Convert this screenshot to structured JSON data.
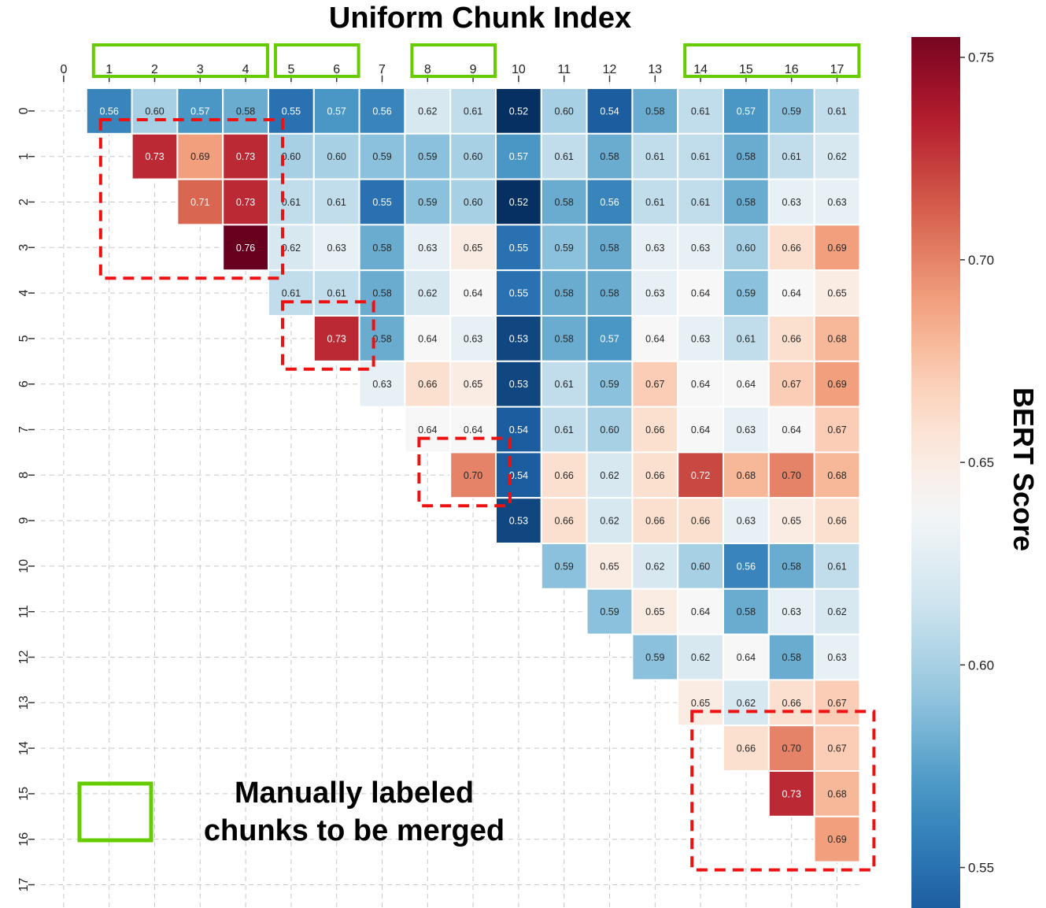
{
  "chart_data": {
    "type": "heatmap",
    "title": "Uniform Chunk Index",
    "xlabel": "Uniform Chunk Index",
    "ylabel": "",
    "x_ticks": [
      0,
      1,
      2,
      3,
      4,
      5,
      6,
      7,
      8,
      9,
      10,
      11,
      12,
      13,
      14,
      15,
      16,
      17
    ],
    "y_ticks": [
      0,
      1,
      2,
      3,
      4,
      5,
      6,
      7,
      8,
      9,
      10,
      11,
      12,
      13,
      14,
      15,
      16,
      17
    ],
    "colorbar": {
      "label": "BERT Score",
      "min": 0.54,
      "max": 0.755,
      "ticks": [
        0.55,
        0.6,
        0.65,
        0.7,
        0.75
      ],
      "tick_labels": [
        "0.55",
        "0.60",
        "0.65",
        "0.70",
        "0.75"
      ],
      "colormap": "RdBu_r"
    },
    "rows": [
      {
        "row": 0,
        "start_col": 1,
        "values": [
          0.56,
          0.6,
          0.57,
          0.58,
          0.55,
          0.57,
          0.56,
          0.62,
          0.61,
          0.52,
          0.6,
          0.54,
          0.58,
          0.61,
          0.57,
          0.59,
          0.61
        ]
      },
      {
        "row": 1,
        "start_col": 2,
        "values": [
          0.73,
          0.69,
          0.73,
          0.6,
          0.6,
          0.59,
          0.59,
          0.6,
          0.57,
          0.61,
          0.58,
          0.61,
          0.61,
          0.58,
          0.61,
          0.62
        ]
      },
      {
        "row": 2,
        "start_col": 3,
        "values": [
          0.71,
          0.73,
          0.61,
          0.61,
          0.55,
          0.59,
          0.6,
          0.52,
          0.58,
          0.56,
          0.61,
          0.61,
          0.58,
          0.63,
          0.63
        ]
      },
      {
        "row": 3,
        "start_col": 4,
        "values": [
          0.76,
          0.62,
          0.63,
          0.58,
          0.63,
          0.65,
          0.55,
          0.59,
          0.58,
          0.63,
          0.63,
          0.6,
          0.66,
          0.69
        ]
      },
      {
        "row": 4,
        "start_col": 5,
        "values": [
          0.61,
          0.61,
          0.58,
          0.62,
          0.64,
          0.55,
          0.58,
          0.58,
          0.63,
          0.64,
          0.59,
          0.64,
          0.65
        ]
      },
      {
        "row": 5,
        "start_col": 6,
        "values": [
          0.73,
          0.58,
          0.64,
          0.63,
          0.53,
          0.58,
          0.57,
          0.64,
          0.63,
          0.61,
          0.66,
          0.68
        ]
      },
      {
        "row": 6,
        "start_col": 7,
        "values": [
          0.63,
          0.66,
          0.65,
          0.53,
          0.61,
          0.59,
          0.67,
          0.64,
          0.64,
          0.67,
          0.69
        ]
      },
      {
        "row": 7,
        "start_col": 8,
        "values": [
          0.64,
          0.64,
          0.54,
          0.61,
          0.6,
          0.66,
          0.64,
          0.63,
          0.64,
          0.67
        ]
      },
      {
        "row": 8,
        "start_col": 9,
        "values": [
          0.7,
          0.54,
          0.66,
          0.62,
          0.66,
          0.72,
          0.68,
          0.7,
          0.68
        ]
      },
      {
        "row": 9,
        "start_col": 10,
        "values": [
          0.53,
          0.66,
          0.62,
          0.66,
          0.66,
          0.63,
          0.65,
          0.66
        ]
      },
      {
        "row": 10,
        "start_col": 11,
        "values": [
          0.59,
          0.65,
          0.62,
          0.6,
          0.56,
          0.58,
          0.61
        ]
      },
      {
        "row": 11,
        "start_col": 12,
        "values": [
          0.59,
          0.65,
          0.64,
          0.58,
          0.63,
          0.62
        ]
      },
      {
        "row": 12,
        "start_col": 13,
        "values": [
          0.59,
          0.62,
          0.64,
          0.58,
          0.63
        ]
      },
      {
        "row": 13,
        "start_col": 14,
        "values": [
          0.65,
          0.62,
          0.66,
          0.67
        ]
      },
      {
        "row": 14,
        "start_col": 15,
        "values": [
          0.66,
          0.7,
          0.67
        ]
      },
      {
        "row": 15,
        "start_col": 16,
        "values": [
          0.73,
          0.68
        ]
      },
      {
        "row": 16,
        "start_col": 17,
        "values": [
          0.69
        ]
      }
    ],
    "highlighted_groups_green": [
      [
        1,
        4
      ],
      [
        5,
        6
      ],
      [
        8,
        9
      ],
      [
        14,
        17
      ]
    ],
    "highlighted_regions_red": [
      {
        "rows": [
          0,
          3
        ],
        "cols": [
          1,
          4
        ]
      },
      {
        "rows": [
          4,
          5
        ],
        "cols": [
          5,
          6
        ]
      },
      {
        "rows": [
          7,
          8
        ],
        "cols": [
          8,
          9
        ]
      },
      {
        "rows": [
          13,
          16
        ],
        "cols": [
          14,
          17
        ]
      }
    ],
    "legend": {
      "line1": "Manually labeled",
      "line2": "chunks to be merged",
      "box_color": "#66cc00"
    },
    "colors": {
      "group_box": "#66cc00",
      "region_box": "#ee1111"
    }
  }
}
